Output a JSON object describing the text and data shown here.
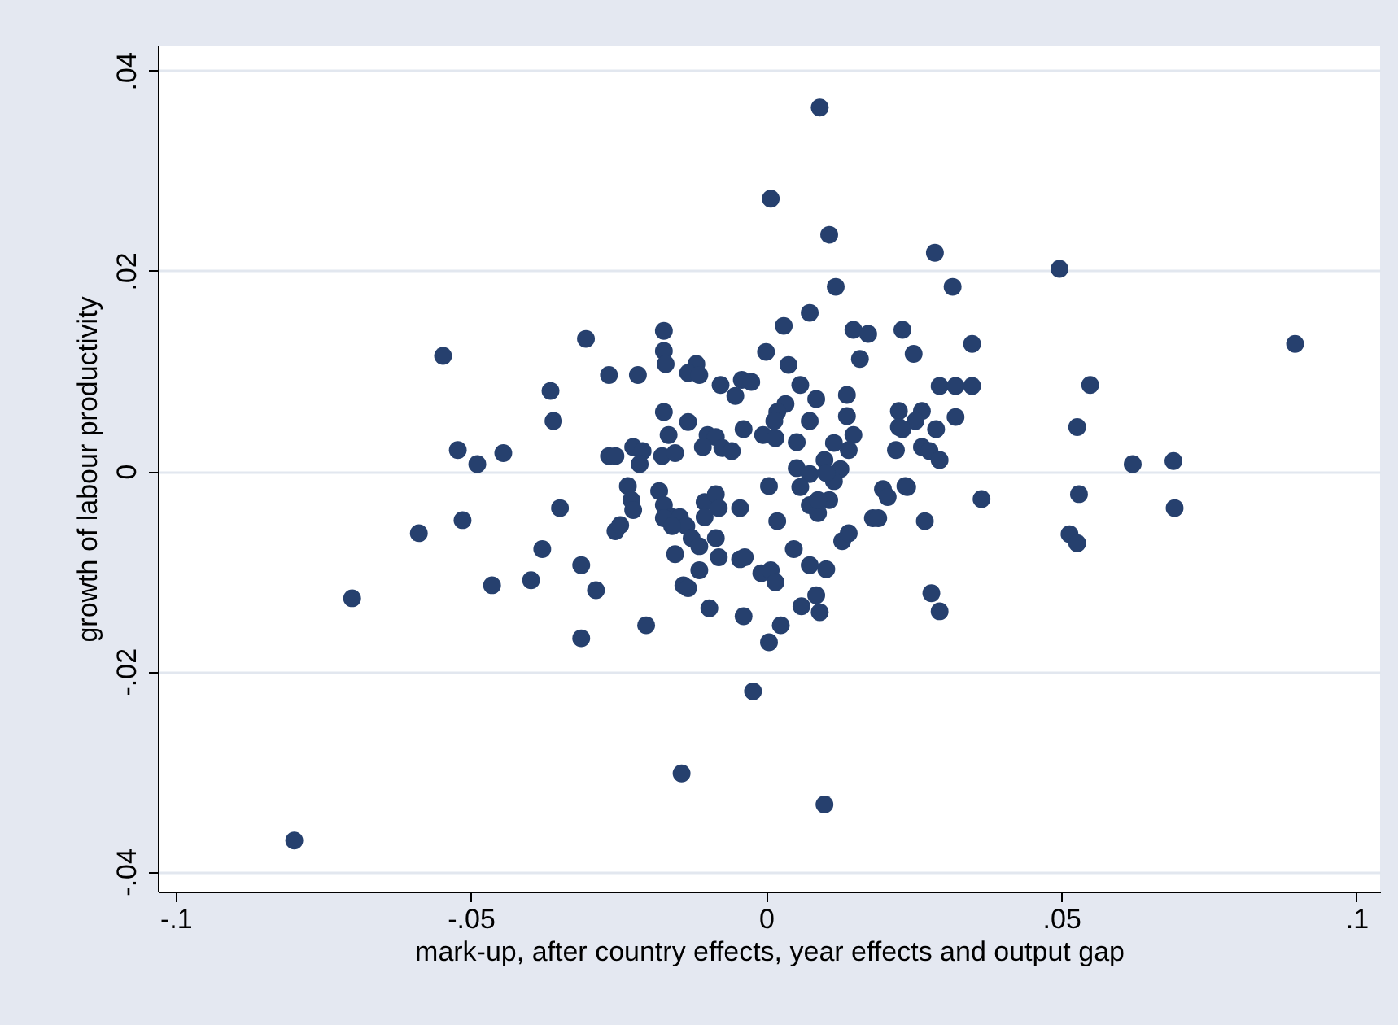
{
  "chart_data": {
    "type": "scatter",
    "xlabel": "mark-up, after country effects, year effects and output gap",
    "ylabel": "growth of labour productivity",
    "xlim": [
      -0.103,
      0.104
    ],
    "ylim": [
      -0.042,
      0.0425
    ],
    "xticks": [
      {
        "value": -0.1,
        "label": "-.1"
      },
      {
        "value": -0.05,
        "label": "-.05"
      },
      0,
      {
        "value": 0.05,
        "label": ".05"
      },
      {
        "value": 0.1,
        "label": ".1"
      }
    ],
    "yticks": [
      {
        "value": -0.04,
        "label": "-.04"
      },
      {
        "value": -0.02,
        "label": "-.02"
      },
      0,
      {
        "value": 0.02,
        "label": ".02"
      },
      {
        "value": 0.04,
        "label": ".04"
      }
    ],
    "grid": "y",
    "marker": "circle",
    "series": [
      {
        "color": "#26406e",
        "x": [
          -0.0799,
          -0.0701,
          -0.0547,
          -0.0522,
          -0.0489,
          -0.0445,
          -0.0588,
          -0.0514,
          -0.0464,
          -0.0398,
          -0.0379,
          -0.0349,
          -0.0313,
          -0.0288,
          -0.0313,
          -0.0365,
          -0.036,
          -0.0305,
          -0.0266,
          -0.0266,
          -0.0255,
          -0.0255,
          -0.0247,
          -0.0234,
          -0.0228,
          -0.0225,
          0.0118,
          0.0074,
          0.003,
          0.0148,
          0.0173,
          0.0231,
          0.0159,
          -0.0173,
          -0.0173,
          -0.017,
          -0.0217,
          -0.0118,
          -0.0132,
          -0.0113,
          0.0,
          0.0038,
          -0.0077,
          -0.0041,
          -0.0025,
          -0.0052,
          0.0058,
          0.0085,
          0.0137,
          0.0033,
          0.0019,
          0.0014,
          0.0074,
          0.0137,
          0.0225,
          -0.0173,
          -0.0132,
          -0.0038,
          0.0225,
          -0.0165,
          -0.0099,
          -0.0085,
          -0.0005,
          0.0016,
          0.0052,
          0.0148,
          0.0115,
          0.014,
          0.022,
          -0.0107,
          -0.0074,
          -0.0058,
          -0.0209,
          -0.0214,
          -0.0176,
          -0.0154,
          0.0052,
          0.0074,
          0.0099,
          0.0126,
          0.0115,
          0.0102,
          -0.0225,
          -0.0181,
          0.0005,
          0.0058,
          0.0198,
          0.0206,
          0.0236,
          -0.0173,
          -0.0159,
          -0.0173,
          -0.0146,
          -0.0135,
          -0.0159,
          -0.0104,
          -0.0085,
          -0.008,
          -0.0104,
          -0.0044,
          0.0074,
          0.0088,
          0.0107,
          0.0088,
          0.0019,
          0.0181,
          0.0129,
          0.014,
          -0.0126,
          -0.0113,
          -0.0085,
          -0.0154,
          -0.008,
          -0.0044,
          -0.0036,
          0.0047,
          0.0074,
          0.0102,
          -0.0113,
          -0.0008,
          0.0008,
          0.0016,
          -0.014,
          -0.0132,
          0.0085,
          0.006,
          0.0091,
          -0.0096,
          -0.0038,
          0.0025,
          0.0005,
          -0.0203,
          -0.0022,
          0.0286,
          0.0497,
          0.0316,
          0.025,
          0.0349,
          0.0294,
          0.0321,
          0.0349,
          0.0549,
          0.0264,
          0.0253,
          0.0231,
          0.0288,
          0.0321,
          0.0527,
          0.0264,
          0.0277,
          0.0294,
          0.0621,
          0.069,
          0.0239,
          0.0365,
          0.053,
          0.0692,
          0.019,
          0.0269,
          0.0514,
          0.0527,
          0.028,
          0.0294,
          0.0091,
          0.0008,
          0.0107,
          -0.0143,
          0.0099,
          0.0896
        ],
        "values": [
          -0.0369,
          -0.0127,
          0.0115,
          0.0021,
          0.0007,
          0.0018,
          -0.0062,
          -0.0049,
          -0.0114,
          -0.0109,
          -0.0078,
          -0.0037,
          -0.0094,
          -0.0119,
          -0.0167,
          0.008,
          0.005,
          0.0132,
          0.0096,
          0.0015,
          0.0015,
          -0.006,
          -0.0054,
          -0.0015,
          -0.0029,
          0.0024,
          0.0184,
          0.0158,
          0.0145,
          0.0141,
          0.0137,
          0.0141,
          0.0112,
          0.014,
          0.012,
          0.0107,
          0.0096,
          0.0107,
          0.0098,
          0.0096,
          0.0119,
          0.0106,
          0.0086,
          0.0091,
          0.0089,
          0.0075,
          0.0086,
          0.0072,
          0.0076,
          0.0067,
          0.0059,
          0.005,
          0.005,
          0.0055,
          0.006,
          0.0059,
          0.0049,
          0.0042,
          0.0044,
          0.0036,
          0.0036,
          0.0034,
          0.0036,
          0.0033,
          0.0029,
          0.0036,
          0.0028,
          0.0021,
          0.0021,
          0.0024,
          0.0023,
          0.002,
          0.002,
          0.0007,
          0.0015,
          0.0018,
          0.0003,
          -0.0003,
          0.0011,
          0.0002,
          -0.001,
          -0.0002,
          -0.0039,
          -0.002,
          -0.0015,
          -0.0016,
          -0.0018,
          -0.0026,
          -0.0015,
          -0.0034,
          -0.0046,
          -0.0047,
          -0.0046,
          -0.0055,
          -0.0055,
          -0.0031,
          -0.0023,
          -0.0037,
          -0.0046,
          -0.0037,
          -0.0034,
          -0.0042,
          -0.0029,
          -0.0029,
          -0.005,
          -0.0047,
          -0.007,
          -0.0062,
          -0.0067,
          -0.0075,
          -0.0067,
          -0.0083,
          -0.0086,
          -0.0088,
          -0.0086,
          -0.0078,
          -0.0094,
          -0.0098,
          -0.0099,
          -0.0102,
          -0.0099,
          -0.0111,
          -0.0114,
          -0.0117,
          -0.0124,
          -0.0135,
          -0.0141,
          -0.0137,
          -0.0145,
          -0.0154,
          -0.0171,
          -0.0154,
          -0.022,
          0.0218,
          0.0202,
          0.0184,
          0.0117,
          0.0127,
          0.0085,
          0.0085,
          0.0085,
          0.0086,
          0.006,
          0.005,
          0.0042,
          0.0042,
          0.0054,
          0.0044,
          0.0024,
          0.002,
          0.0011,
          0.0007,
          0.001,
          -0.0016,
          -0.0028,
          -0.0023,
          -0.0037,
          -0.0047,
          -0.005,
          -0.0063,
          -0.0072,
          -0.0122,
          -0.014,
          0.0363,
          0.0272,
          0.0236,
          -0.0302,
          -0.0333,
          0.0127
        ]
      }
    ]
  }
}
